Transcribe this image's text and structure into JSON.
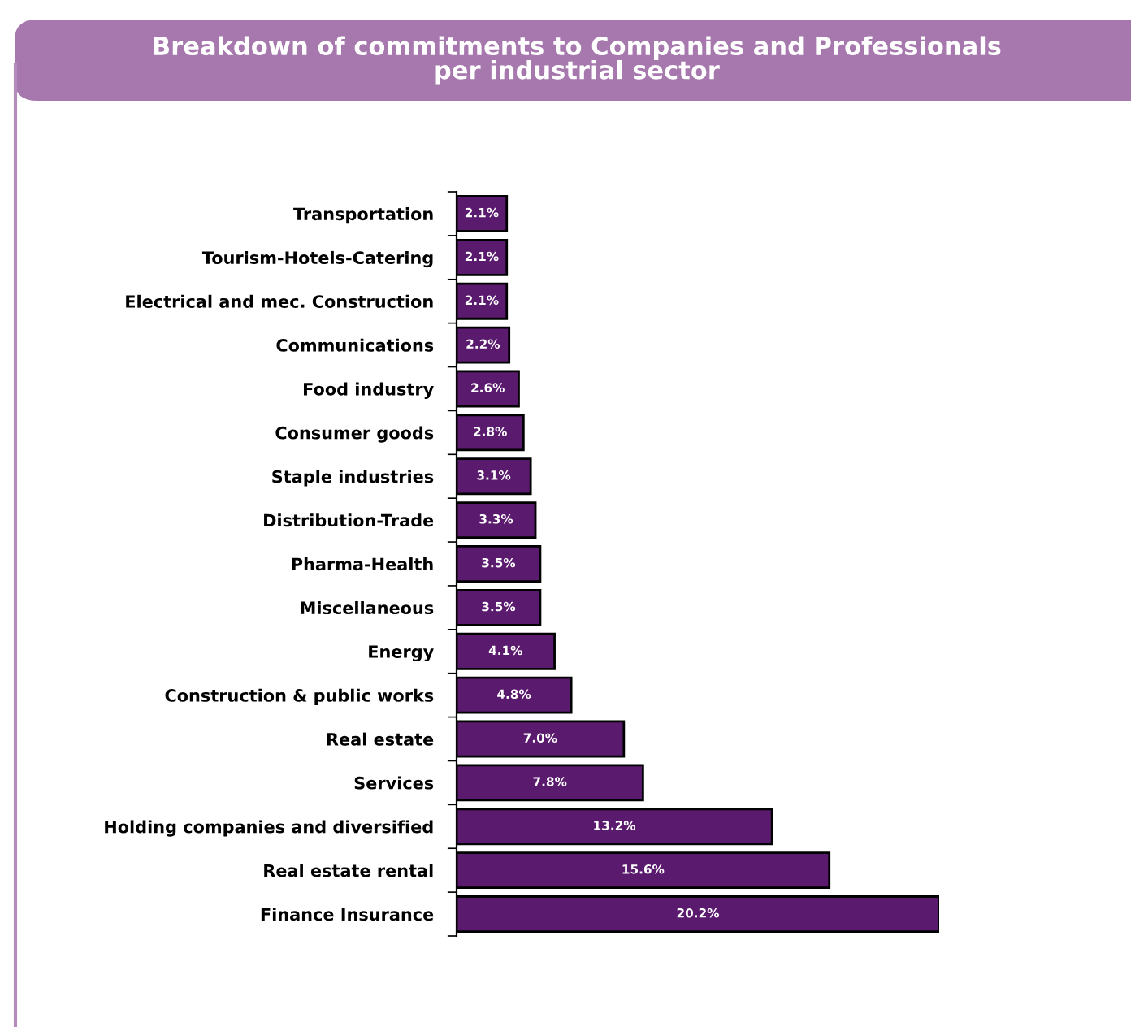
{
  "chart_data": {
    "type": "bar",
    "orientation": "horizontal",
    "title": "Breakdown of commitments to Companies and Professionals\nper industrial sector",
    "categories": [
      "Transportation",
      "Tourism-Hotels-Catering",
      "Electrical and mec. Construction",
      "Communications",
      "Food industry",
      "Consumer goods",
      "Staple industries",
      "Distribution-Trade",
      "Pharma-Health",
      "Miscellaneous",
      "Energy",
      "Construction & public works",
      "Real estate",
      "Services",
      "Holding companies and diversified",
      "Real estate rental",
      "Finance Insurance"
    ],
    "values": [
      2.1,
      2.1,
      2.1,
      2.2,
      2.6,
      2.8,
      3.1,
      3.3,
      3.5,
      3.5,
      4.1,
      4.8,
      7.0,
      7.8,
      13.2,
      15.6,
      20.2
    ],
    "value_labels": [
      "2.1%",
      "2.1%",
      "2.1%",
      "2.2%",
      "2.6%",
      "2.8%",
      "3.1%",
      "3.3%",
      "3.5%",
      "3.5%",
      "4.1%",
      "4.8%",
      "7.0%",
      "7.8%",
      "13.2%",
      "15.6%",
      "20.2%"
    ],
    "color": "#5a1a6e",
    "grid": false,
    "legend": false
  }
}
